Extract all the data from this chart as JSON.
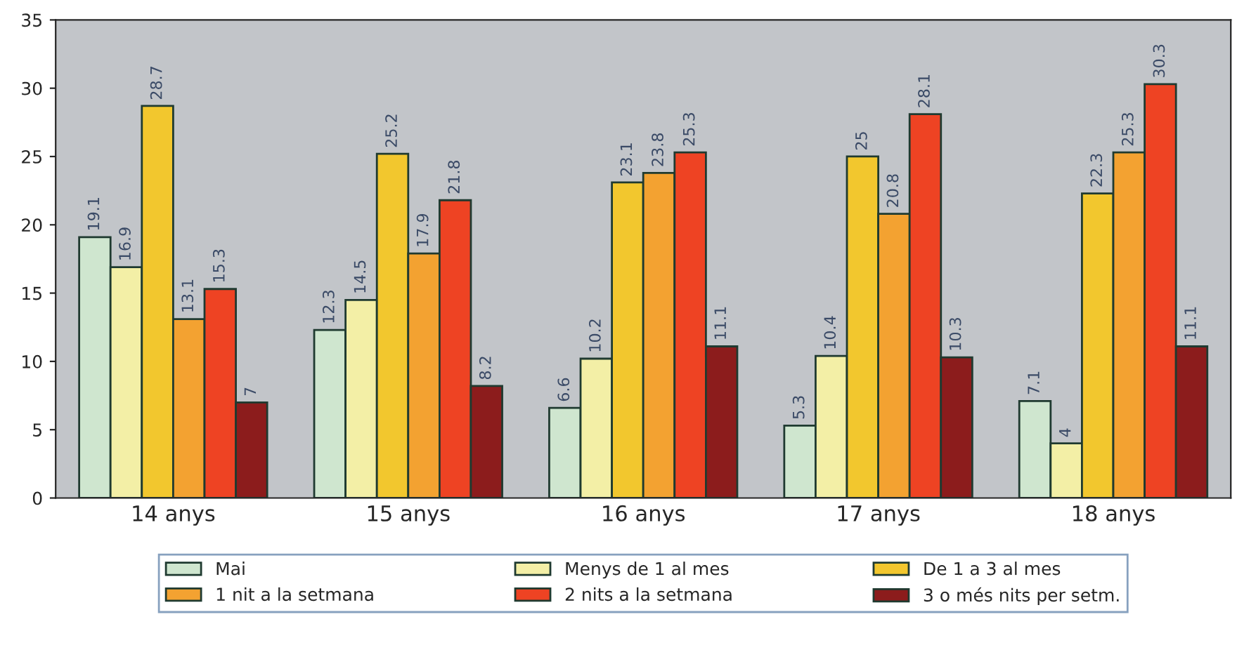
{
  "chart_data": {
    "type": "bar",
    "categories": [
      "14 anys",
      "15 anys",
      "16 anys",
      "17 anys",
      "18 anys"
    ],
    "series": [
      {
        "name": "Mai",
        "color": "#cfe6cf",
        "values": [
          19.1,
          12.3,
          6.6,
          5.3,
          7.1
        ]
      },
      {
        "name": "Menys de 1 al mes",
        "color": "#f3efa6",
        "values": [
          16.9,
          14.5,
          10.2,
          10.4,
          4
        ]
      },
      {
        "name": "De 1 a 3 al mes",
        "color": "#f2c72e",
        "values": [
          28.7,
          25.2,
          23.1,
          25,
          22.3
        ]
      },
      {
        "name": "1 nit a la setmana",
        "color": "#f3a231",
        "values": [
          13.1,
          17.9,
          23.8,
          20.8,
          25.3
        ]
      },
      {
        "name": "2 nits a la setmana",
        "color": "#ee4323",
        "values": [
          15.3,
          21.8,
          25.3,
          28.1,
          30.3
        ]
      },
      {
        "name": "3 o més nits per setm.",
        "color": "#8c1c1c",
        "values": [
          7,
          8.2,
          11.1,
          10.3,
          11.1
        ]
      }
    ],
    "ylim": [
      0,
      35
    ],
    "yticks": [
      0,
      5,
      10,
      15,
      20,
      25,
      30,
      35
    ],
    "grid": false,
    "legend": "bottom",
    "data_labels": true
  }
}
